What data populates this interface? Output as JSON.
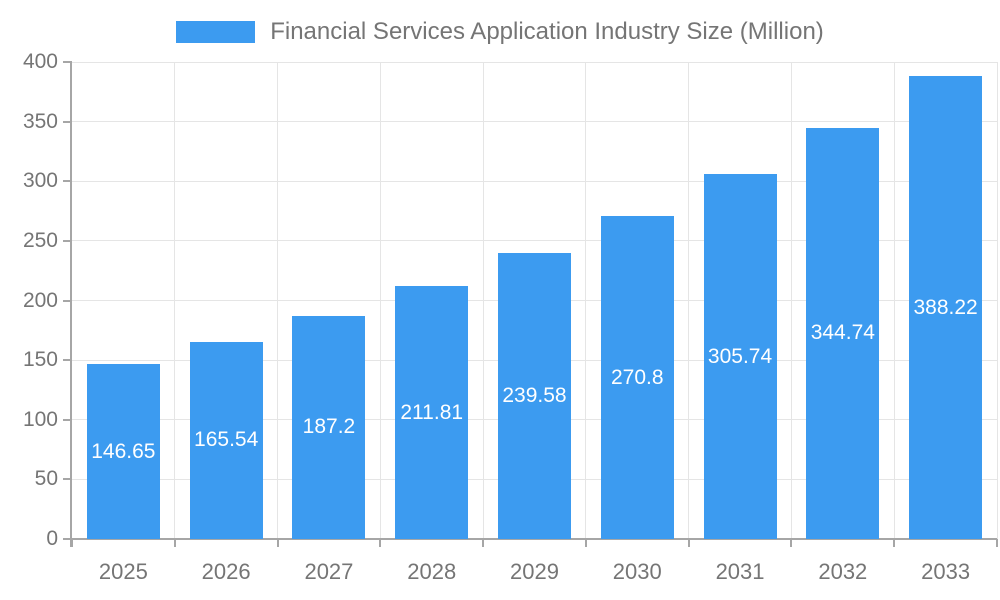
{
  "chart_data": {
    "type": "bar",
    "title": "Financial Services Application Industry Size (Million)",
    "categories": [
      "2025",
      "2026",
      "2027",
      "2028",
      "2029",
      "2030",
      "2031",
      "2032",
      "2033"
    ],
    "values": [
      146.65,
      165.54,
      187.2,
      211.81,
      239.58,
      270.8,
      305.74,
      344.74,
      388.22
    ],
    "xlabel": "",
    "ylabel": "",
    "ylim": [
      0,
      400
    ],
    "ytick_step": 50,
    "ytick_labels": [
      "0",
      "50",
      "100",
      "150",
      "200",
      "250",
      "300",
      "350",
      "400"
    ],
    "grid": true,
    "legend_position": "top",
    "value_labels_inside_bars": true
  },
  "colors": {
    "bar": "#3c9bf0",
    "bar_label": "#ffffff",
    "title_text": "#757575",
    "axis_label": "#757575",
    "grid": "#e5e5e5",
    "axis": "#a6a6a6",
    "background": "#ffffff"
  }
}
